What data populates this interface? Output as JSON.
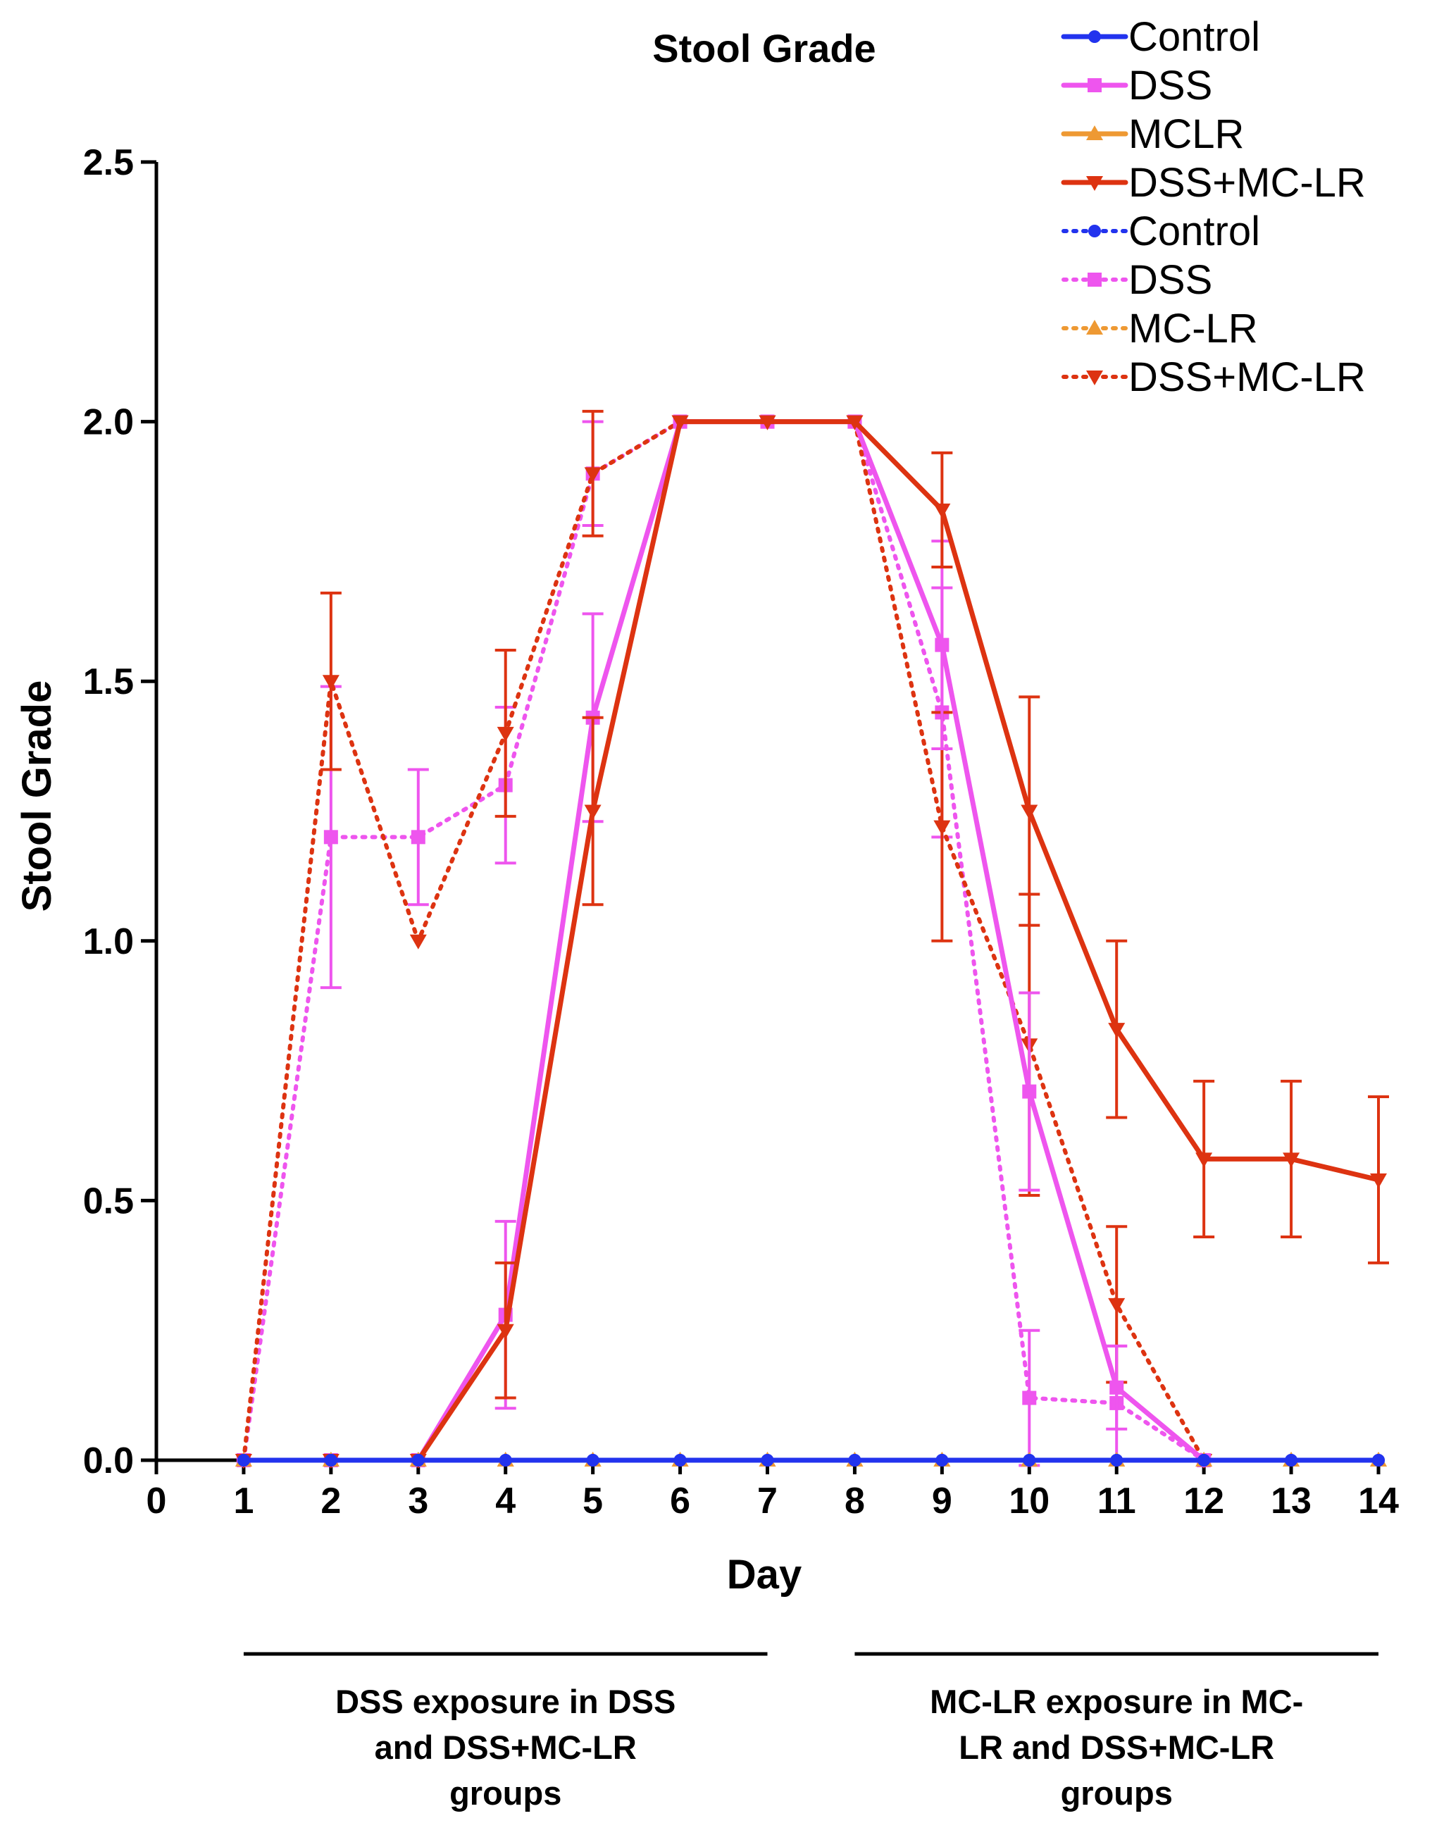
{
  "chart_data": {
    "type": "line",
    "title": "Stool Grade",
    "xlabel": "Day",
    "ylabel": "Stool Grade",
    "xlim": [
      0,
      14
    ],
    "ylim": [
      0,
      2.5
    ],
    "xticks": [
      "0",
      "1",
      "2",
      "3",
      "4",
      "5",
      "6",
      "7",
      "8",
      "9",
      "10",
      "11",
      "12",
      "13",
      "14"
    ],
    "yticks": [
      "0.0",
      "0.5",
      "1.0",
      "1.5",
      "2.0",
      "2.5"
    ],
    "legend_position": "top-right",
    "series": [
      {
        "name": "Control",
        "color": "#2233ee",
        "style": "solid",
        "marker": "circle",
        "x": [
          1,
          2,
          3,
          4,
          5,
          6,
          7,
          8,
          9,
          10,
          11,
          12,
          13,
          14
        ],
        "values": [
          0,
          0,
          0,
          0,
          0,
          0,
          0,
          0,
          0,
          0,
          0,
          0,
          0,
          0
        ],
        "errors": [
          0,
          0,
          0,
          0,
          0,
          0,
          0,
          0,
          0,
          0,
          0,
          0,
          0,
          0
        ]
      },
      {
        "name": "DSS",
        "color": "#ee55ee",
        "style": "solid",
        "marker": "square",
        "x": [
          1,
          2,
          3,
          4,
          5,
          6,
          7,
          8,
          9,
          10,
          11,
          12
        ],
        "values": [
          0,
          0,
          0,
          0.28,
          1.43,
          2.0,
          2.0,
          2.0,
          1.57,
          0.71,
          0.14,
          0
        ],
        "errors": [
          0,
          0,
          0,
          0.18,
          0.2,
          0,
          0,
          0,
          0.2,
          0.19,
          0.08,
          0
        ]
      },
      {
        "name": "MCLR",
        "color": "#ee9933",
        "style": "solid",
        "marker": "triangle-up",
        "x": [
          1,
          2,
          3,
          4,
          5,
          6,
          7,
          8,
          9,
          10,
          11,
          12,
          13,
          14
        ],
        "values": [
          0,
          0,
          0,
          0,
          0,
          0,
          0,
          0,
          0,
          0,
          0,
          0,
          0,
          0
        ],
        "errors": [
          0,
          0,
          0,
          0,
          0,
          0,
          0,
          0,
          0,
          0,
          0,
          0,
          0,
          0
        ]
      },
      {
        "name": "DSS+MC-LR",
        "color": "#dd3311",
        "style": "solid",
        "marker": "triangle-down",
        "x": [
          1,
          2,
          3,
          4,
          5,
          6,
          7,
          8,
          9,
          10,
          11,
          12,
          13,
          14
        ],
        "values": [
          0,
          0,
          0,
          0.25,
          1.25,
          2.0,
          2.0,
          2.0,
          1.83,
          1.25,
          0.83,
          0.58,
          0.58,
          0.54
        ],
        "errors": [
          0,
          0,
          0,
          0.13,
          0.18,
          0,
          0,
          0,
          0.11,
          0.22,
          0.17,
          0.15,
          0.15,
          0.16
        ]
      },
      {
        "name": "Control",
        "color": "#2233ee",
        "style": "dotted",
        "marker": "circle",
        "x": [
          1,
          2,
          3,
          4,
          5,
          6,
          7,
          8,
          9,
          10,
          11,
          12,
          13,
          14
        ],
        "values": [
          0,
          0,
          0,
          0,
          0,
          0,
          0,
          0,
          0,
          0,
          0,
          0,
          0,
          0
        ],
        "errors": [
          0,
          0,
          0,
          0,
          0,
          0,
          0,
          0,
          0,
          0,
          0,
          0,
          0,
          0
        ]
      },
      {
        "name": "DSS",
        "color": "#ee55ee",
        "style": "dotted",
        "marker": "square",
        "x": [
          1,
          2,
          3,
          4,
          5,
          6,
          7,
          8,
          9,
          10,
          11,
          12
        ],
        "values": [
          0,
          1.2,
          1.2,
          1.3,
          1.9,
          2.0,
          2.0,
          2.0,
          1.44,
          0.12,
          0.11,
          0
        ],
        "errors": [
          0,
          0.29,
          0.13,
          0.15,
          0.1,
          0,
          0,
          0,
          0.24,
          0.13,
          0.11,
          0
        ]
      },
      {
        "name": "MC-LR",
        "color": "#ee9933",
        "style": "dotted",
        "marker": "triangle-up",
        "x": [
          1,
          2,
          3,
          4,
          5,
          6,
          7,
          8,
          9,
          10,
          11,
          12,
          13,
          14
        ],
        "values": [
          0,
          0,
          0,
          0,
          0,
          0,
          0,
          0,
          0,
          0,
          0,
          0,
          0,
          0
        ],
        "errors": [
          0,
          0,
          0,
          0,
          0,
          0,
          0,
          0,
          0,
          0,
          0,
          0,
          0,
          0
        ]
      },
      {
        "name": "DSS+MC-LR",
        "color": "#dd3311",
        "style": "dotted",
        "marker": "triangle-down",
        "x": [
          1,
          2,
          3,
          4,
          5,
          6,
          7,
          8,
          9,
          10,
          11,
          12
        ],
        "values": [
          0,
          1.5,
          1.0,
          1.4,
          1.9,
          2.0,
          2.0,
          2.0,
          1.22,
          0.8,
          0.3,
          0
        ],
        "errors": [
          0,
          0.17,
          0,
          0.16,
          0.12,
          0,
          0,
          0,
          0.22,
          0.29,
          0.15,
          0
        ]
      }
    ],
    "annotations": [
      {
        "x_start": 1,
        "x_end": 7,
        "lines": [
          "DSS exposure in DSS",
          "and DSS+MC-LR",
          "groups"
        ]
      },
      {
        "x_start": 8,
        "x_end": 14,
        "lines": [
          "MC-LR exposure in MC-",
          "LR and DSS+MC-LR",
          "groups"
        ]
      }
    ]
  }
}
